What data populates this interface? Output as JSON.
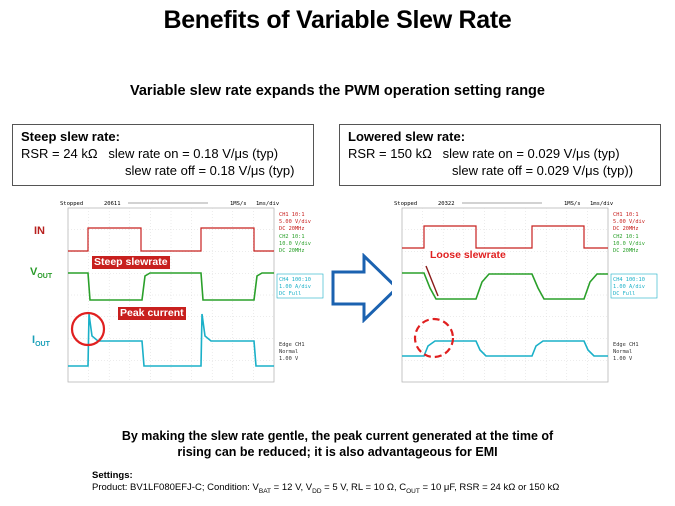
{
  "title": "Benefits of Variable Slew Rate",
  "subtitle": "Variable slew rate expands the PWM operation setting range",
  "left_box": {
    "heading": "Steep slew rate:",
    "line1": "RSR = 24 kΩ   slew rate on = 0.18 V/μs (typ)",
    "line2": "slew rate off = 0.18 V/μs (typ)"
  },
  "right_box": {
    "heading": "Lowered slew rate:",
    "line1": "RSR = 150 kΩ   slew rate on = 0.029 V/μs (typ)",
    "line2": "slew rate off = 0.029 V/μs (typ))"
  },
  "signal_labels": {
    "in": "IN",
    "vout_main": "V",
    "vout_sub": "OUT",
    "iout_main": "I",
    "iout_sub": "OUT"
  },
  "scope_left": {
    "status": "Stopped",
    "count": "20611",
    "rate": "1MS/s",
    "time": "1ms/div",
    "ch1": [
      "CH1 10:1",
      "5.00 V/div",
      "DC   20MHz"
    ],
    "ch2": [
      "CH2 10:1",
      "10.0 V/div",
      "DC   20MHz"
    ],
    "ch4": [
      "CH4 100:10",
      "1.00 A/div",
      "DC   Full"
    ],
    "trigger": [
      "Edge CH1",
      "Normal",
      "1.00 V"
    ],
    "annotation_slew": "Steep slewrate",
    "annotation_peak": "Peak current"
  },
  "scope_right": {
    "status": "Stopped",
    "count": "20322",
    "rate": "1MS/s",
    "time": "1ms/div",
    "ch1": [
      "CH1 10:1",
      "5.00 V/div",
      "DC   20MHz"
    ],
    "ch2": [
      "CH2 10:1",
      "10.0 V/div",
      "DC   20MHz"
    ],
    "ch4": [
      "CH4 100:10",
      "1.00 A/div",
      "DC   Full"
    ],
    "trigger": [
      "Edge CH1",
      "Normal",
      "1.00 V"
    ],
    "annotation_slew": "Loose slewrate"
  },
  "conclusion": {
    "line1": "By making the slew rate gentle, the peak current generated at the time of",
    "line2": "rising can be reduced; it is also advantageous for EMI"
  },
  "settings": {
    "label": "Settings:",
    "t1": "Product: BV1LF080EFJ-C;  Condition:  V",
    "s1": "BAT",
    "t2": " = 12 V, V",
    "s2": "DD",
    "t3": " = 5 V, RL = 10 Ω, C",
    "s3": "OUT",
    "t4": " = 10 μF, RSR = 24 kΩ  or 150 kΩ"
  },
  "colors": {
    "ch1": "#c8201e",
    "ch2": "#2aa02a",
    "ch4": "#1ab0c8",
    "arrow": "#1b62b0",
    "marker": "#e02020"
  }
}
